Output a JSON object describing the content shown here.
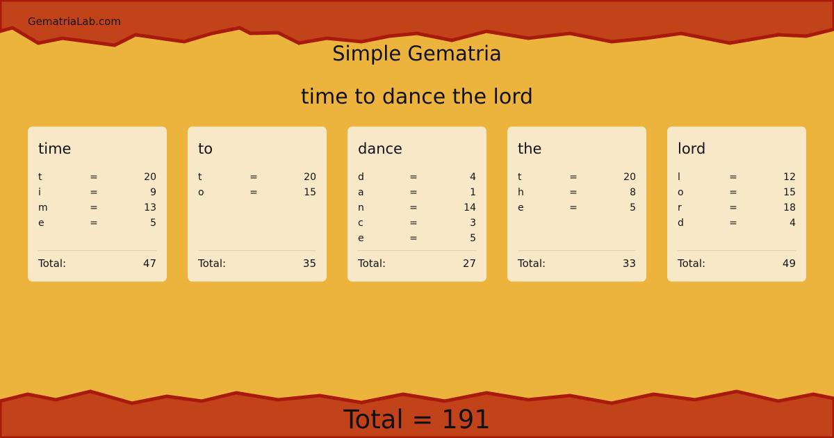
{
  "site": "GematriaLab.com",
  "title": "Simple Gematria",
  "phrase": "time to dance the lord",
  "colors": {
    "background": "#ecb43c",
    "band": "#c2421a",
    "band_edge": "#a81a0c",
    "card": "#f8e8c8"
  },
  "words": [
    {
      "word": "time",
      "letters": [
        [
          "t",
          "=",
          "20"
        ],
        [
          "i",
          "=",
          "9"
        ],
        [
          "m",
          "=",
          "13"
        ],
        [
          "e",
          "=",
          "5"
        ]
      ],
      "total_label": "Total:",
      "total": "47"
    },
    {
      "word": "to",
      "letters": [
        [
          "t",
          "=",
          "20"
        ],
        [
          "o",
          "=",
          "15"
        ]
      ],
      "total_label": "Total:",
      "total": "35"
    },
    {
      "word": "dance",
      "letters": [
        [
          "d",
          "=",
          "4"
        ],
        [
          "a",
          "=",
          "1"
        ],
        [
          "n",
          "=",
          "14"
        ],
        [
          "c",
          "=",
          "3"
        ],
        [
          "e",
          "=",
          "5"
        ]
      ],
      "total_label": "Total:",
      "total": "27"
    },
    {
      "word": "the",
      "letters": [
        [
          "t",
          "=",
          "20"
        ],
        [
          "h",
          "=",
          "8"
        ],
        [
          "e",
          "=",
          "5"
        ]
      ],
      "total_label": "Total:",
      "total": "33"
    },
    {
      "word": "lord",
      "letters": [
        [
          "l",
          "=",
          "12"
        ],
        [
          "o",
          "=",
          "15"
        ],
        [
          "r",
          "=",
          "18"
        ],
        [
          "d",
          "=",
          "4"
        ]
      ],
      "total_label": "Total:",
      "total": "49"
    }
  ],
  "grand_total": "Total = 191"
}
